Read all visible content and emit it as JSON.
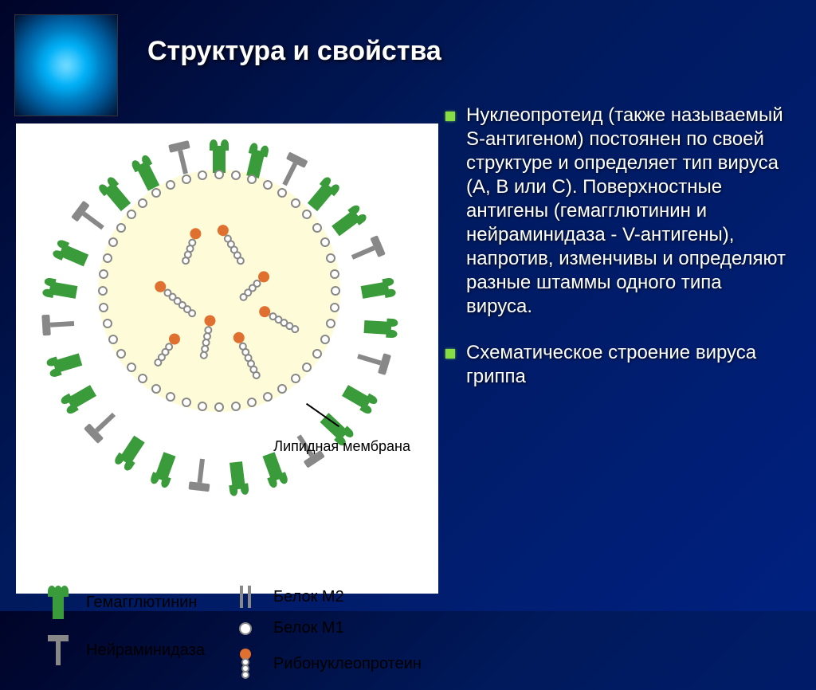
{
  "title": "Структура и свойства",
  "bullets": [
    "Нуклеопротеид (также называемый S-антигеном) постоянен по своей структуре и определяет тип вируса (A, B или C). Поверхностные антигены (гемагглютинин и нейраминидаза - V-антигены), напротив, изменчивы и определяют разные штаммы одного типа вируса.",
    "Схематическое строение вируса гриппа"
  ],
  "diagram": {
    "type": "infographic",
    "background_color": "#ffffff",
    "core_color": "#fefcd8",
    "ha_color": "#3a9b3a",
    "na_color": "#888888",
    "m1_color": "#888888",
    "rnp_cap_color": "#e07030",
    "membrane_label": "Липидная мембрана",
    "legend": {
      "hemagglutinin": "Гемагглютинин",
      "neuraminidase": "Нейраминидаза",
      "m2": "Белок M2",
      "m1": "Белок M1",
      "rnp": "Рибонуклеопротеин"
    },
    "ha_count": 18,
    "na_count": 9,
    "membrane_dot_count": 44,
    "rnp_count": 8
  },
  "styling": {
    "title_fontsize": 34,
    "body_fontsize": 24,
    "legend_fontsize": 20,
    "bullet_color": "#88dd44",
    "bg_gradient": [
      "#000428",
      "#001a5c",
      "#002080"
    ]
  }
}
